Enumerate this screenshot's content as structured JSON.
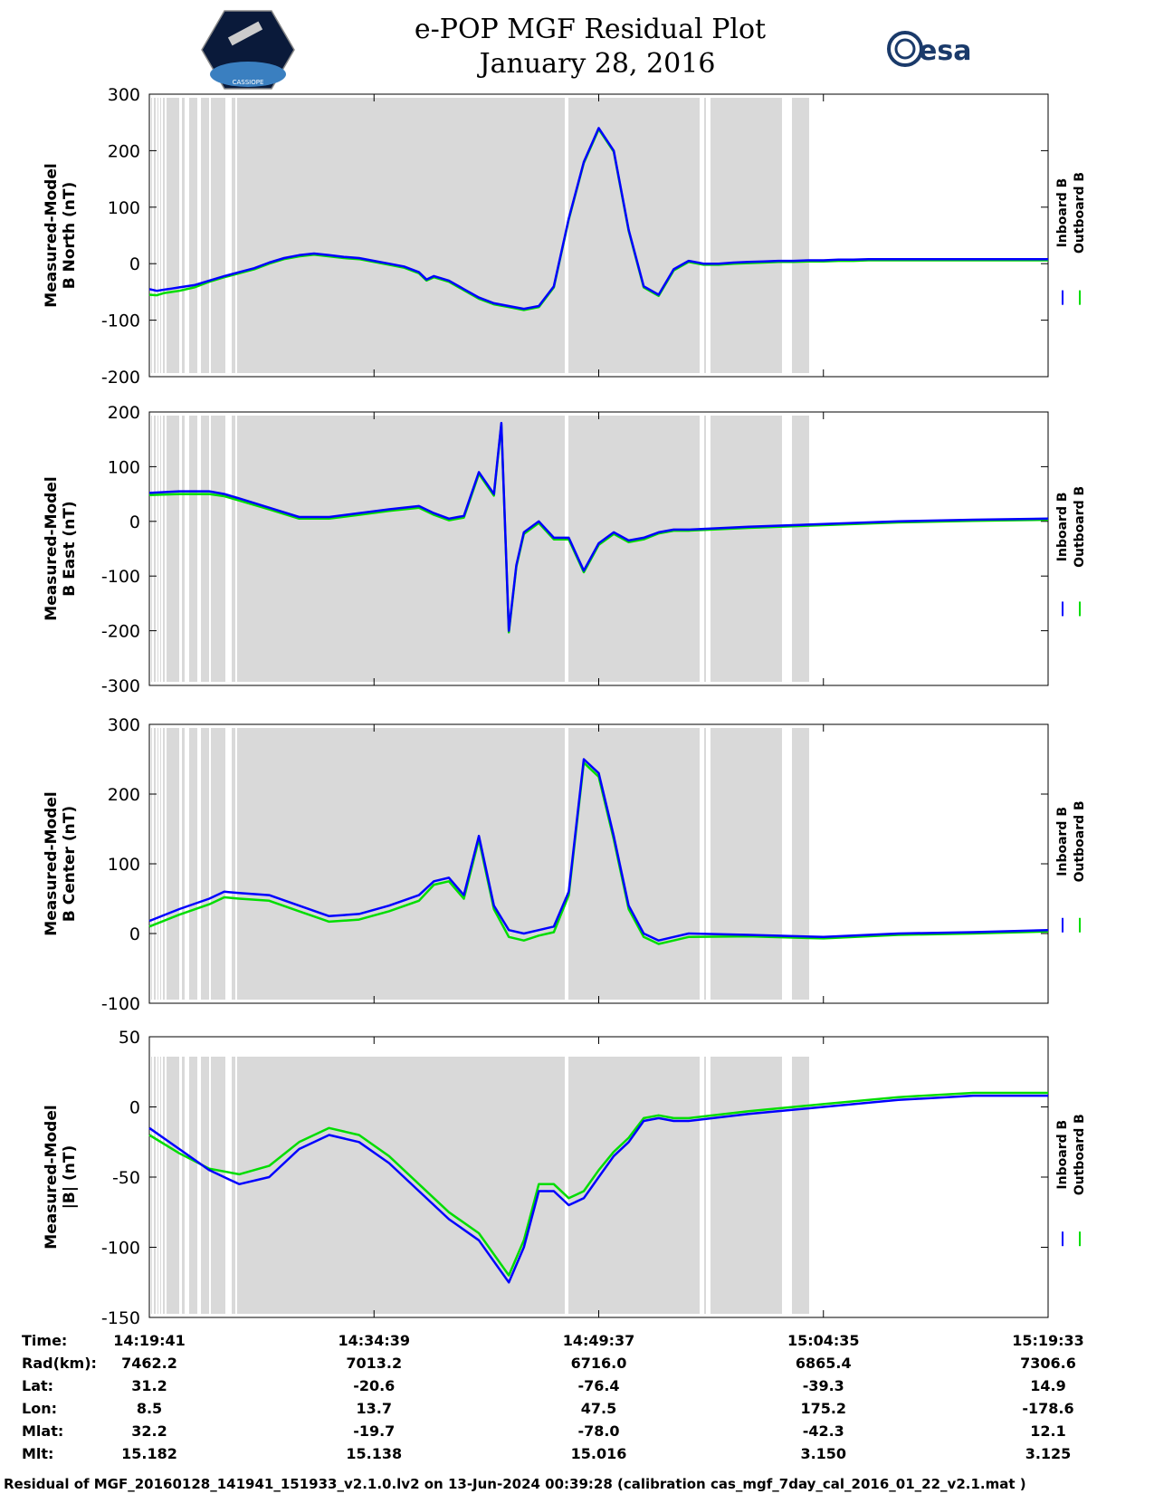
{
  "figure": {
    "title": "e-POP MGF Residual Plot",
    "date": "January 28, 2016",
    "logo_left": "CASSIOPE",
    "logo_right": "esa",
    "footer": "Residual of MGF_20160128_141941_151933_v2.1.0.lv2 on 13-Jun-2024 00:39:28 (calibration cas_mgf_7day_cal_2016_01_22_v2.1.mat )"
  },
  "colors": {
    "inboard": "#0000ff",
    "outboard": "#00dd00",
    "gap_shade": "#d9d9d9"
  },
  "chart_data": [
    {
      "type": "line",
      "name": "b-north",
      "ylabel": [
        "Measured-Model",
        "B North (nT)"
      ],
      "ylim": [
        -200,
        300
      ],
      "yticks": [
        300,
        200,
        100,
        0,
        -100,
        -200
      ],
      "legend": [
        "Inboard B",
        "Outboard B"
      ],
      "x": [
        0,
        0.5,
        1,
        1.5,
        2,
        3,
        4,
        5,
        6,
        7,
        8,
        9,
        10,
        11,
        12,
        13,
        14,
        15,
        16,
        17,
        18,
        18.5,
        19,
        20,
        21,
        22,
        23,
        24,
        25,
        26,
        27,
        28,
        29,
        30,
        31,
        32,
        33,
        34,
        35,
        36,
        37,
        38,
        39,
        40,
        41,
        42,
        43,
        44,
        45,
        46,
        47,
        48,
        49,
        50,
        52,
        55,
        58,
        60
      ],
      "series": [
        {
          "name": "Inboard B",
          "values": [
            -45,
            -48,
            -46,
            -44,
            -42,
            -38,
            -30,
            -22,
            -15,
            -8,
            2,
            10,
            15,
            18,
            15,
            12,
            10,
            5,
            0,
            -5,
            -15,
            -28,
            -22,
            -30,
            -45,
            -60,
            -70,
            -75,
            -80,
            -75,
            -40,
            80,
            180,
            240,
            200,
            60,
            -40,
            -55,
            -10,
            5,
            0,
            0,
            2,
            3,
            4,
            5,
            5,
            6,
            6,
            7,
            7,
            8,
            8,
            8,
            8,
            8,
            8,
            8
          ]
        },
        {
          "name": "Outboard B",
          "values": [
            -55,
            -56,
            -52,
            -50,
            -48,
            -42,
            -32,
            -24,
            -17,
            -10,
            0,
            8,
            13,
            16,
            13,
            10,
            8,
            3,
            -2,
            -7,
            -17,
            -30,
            -24,
            -32,
            -47,
            -62,
            -72,
            -77,
            -82,
            -77,
            -42,
            78,
            178,
            238,
            198,
            58,
            -42,
            -57,
            -12,
            3,
            -2,
            -2,
            0,
            1,
            2,
            3,
            3,
            4,
            4,
            5,
            5,
            6,
            6,
            6,
            6,
            6,
            6,
            6
          ]
        }
      ]
    },
    {
      "type": "line",
      "name": "b-east",
      "ylabel": [
        "Measured-Model",
        "B East (nT)"
      ],
      "ylim": [
        -300,
        200
      ],
      "yticks": [
        200,
        100,
        0,
        -100,
        -200,
        -300
      ],
      "legend": [
        "Inboard B",
        "Outboard B"
      ],
      "x": [
        0,
        2,
        4,
        5,
        6,
        8,
        10,
        12,
        14,
        16,
        18,
        19,
        20,
        21,
        22,
        23,
        23.5,
        24,
        24.5,
        25,
        26,
        27,
        28,
        29,
        30,
        31,
        32,
        33,
        34,
        35,
        36,
        40,
        45,
        50,
        55,
        60
      ],
      "series": [
        {
          "name": "Inboard B",
          "values": [
            52,
            55,
            55,
            50,
            42,
            25,
            8,
            8,
            15,
            22,
            28,
            15,
            5,
            10,
            90,
            50,
            180,
            -200,
            -80,
            -20,
            0,
            -30,
            -30,
            -90,
            -40,
            -20,
            -35,
            -30,
            -20,
            -15,
            -15,
            -10,
            -5,
            0,
            3,
            5
          ]
        },
        {
          "name": "Outboard B",
          "values": [
            48,
            50,
            50,
            46,
            38,
            22,
            5,
            5,
            12,
            19,
            25,
            12,
            2,
            7,
            87,
            47,
            177,
            -203,
            -83,
            -23,
            -3,
            -33,
            -33,
            -93,
            -43,
            -23,
            -38,
            -33,
            -22,
            -17,
            -17,
            -12,
            -7,
            -2,
            1,
            3
          ]
        }
      ]
    },
    {
      "type": "line",
      "name": "b-center",
      "ylabel": [
        "Measured-Model",
        "B Center (nT)"
      ],
      "ylim": [
        -100,
        300
      ],
      "yticks": [
        300,
        200,
        100,
        0,
        -100
      ],
      "legend": [
        "Inboard B",
        "Outboard B"
      ],
      "x": [
        0,
        2,
        4,
        5,
        6,
        8,
        10,
        12,
        14,
        16,
        18,
        19,
        20,
        21,
        22,
        23,
        24,
        25,
        26,
        27,
        28,
        29,
        30,
        31,
        32,
        33,
        34,
        35,
        36,
        40,
        45,
        50,
        55,
        60
      ],
      "series": [
        {
          "name": "Inboard B",
          "values": [
            18,
            35,
            50,
            60,
            58,
            55,
            40,
            25,
            28,
            40,
            55,
            75,
            80,
            55,
            140,
            40,
            5,
            0,
            5,
            10,
            60,
            250,
            230,
            140,
            40,
            0,
            -10,
            -5,
            0,
            -2,
            -5,
            0,
            2,
            5
          ]
        },
        {
          "name": "Outboard B",
          "values": [
            10,
            27,
            42,
            52,
            50,
            47,
            32,
            17,
            20,
            32,
            47,
            70,
            75,
            50,
            135,
            35,
            -5,
            -10,
            -3,
            2,
            55,
            245,
            225,
            135,
            35,
            -5,
            -15,
            -10,
            -5,
            -4,
            -7,
            -2,
            0,
            3
          ]
        }
      ]
    },
    {
      "type": "line",
      "name": "b-magnitude",
      "ylabel": [
        "Measured-Model",
        "|B| (nT)"
      ],
      "ylim": [
        -150,
        50
      ],
      "yticks": [
        50,
        0,
        -50,
        -100,
        -150
      ],
      "legend": [
        "Inboard B",
        "Outboard B"
      ],
      "x": [
        0,
        2,
        4,
        6,
        8,
        10,
        12,
        14,
        16,
        18,
        20,
        22,
        24,
        25,
        26,
        27,
        28,
        29,
        30,
        31,
        32,
        33,
        34,
        35,
        36,
        40,
        45,
        50,
        55,
        60
      ],
      "series": [
        {
          "name": "Inboard B",
          "values": [
            -15,
            -30,
            -45,
            -55,
            -50,
            -30,
            -20,
            -25,
            -40,
            -60,
            -80,
            -95,
            -125,
            -100,
            -60,
            -60,
            -70,
            -65,
            -50,
            -35,
            -25,
            -10,
            -8,
            -10,
            -10,
            -5,
            0,
            5,
            8,
            8
          ]
        },
        {
          "name": "Outboard B",
          "values": [
            -20,
            -33,
            -44,
            -48,
            -42,
            -25,
            -15,
            -20,
            -35,
            -55,
            -75,
            -90,
            -120,
            -95,
            -55,
            -55,
            -65,
            -60,
            -45,
            -32,
            -22,
            -8,
            -6,
            -8,
            -8,
            -3,
            2,
            7,
            10,
            10
          ]
        }
      ]
    }
  ],
  "x_axis": {
    "xlim": [
      0,
      60
    ],
    "ticks": [
      0,
      15,
      30,
      45,
      60
    ]
  },
  "orbit_table": {
    "labels": [
      "Time:",
      "Rad(km):",
      "Lat:",
      "Lon:",
      "Mlat:",
      "Mlt:"
    ],
    "columns": [
      [
        "14:19:41",
        "7462.2",
        "31.2",
        "8.5",
        "32.2",
        "15.182"
      ],
      [
        "14:34:39",
        "7013.2",
        "-20.6",
        "13.7",
        "-19.7",
        "15.138"
      ],
      [
        "14:49:37",
        "6716.0",
        "-76.4",
        "47.5",
        "-78.0",
        "15.016"
      ],
      [
        "15:04:35",
        "6865.4",
        "-39.3",
        "175.2",
        "-42.3",
        "3.150"
      ],
      [
        "15:19:33",
        "7306.6",
        "14.9",
        "-178.6",
        "12.1",
        "3.125"
      ]
    ]
  }
}
